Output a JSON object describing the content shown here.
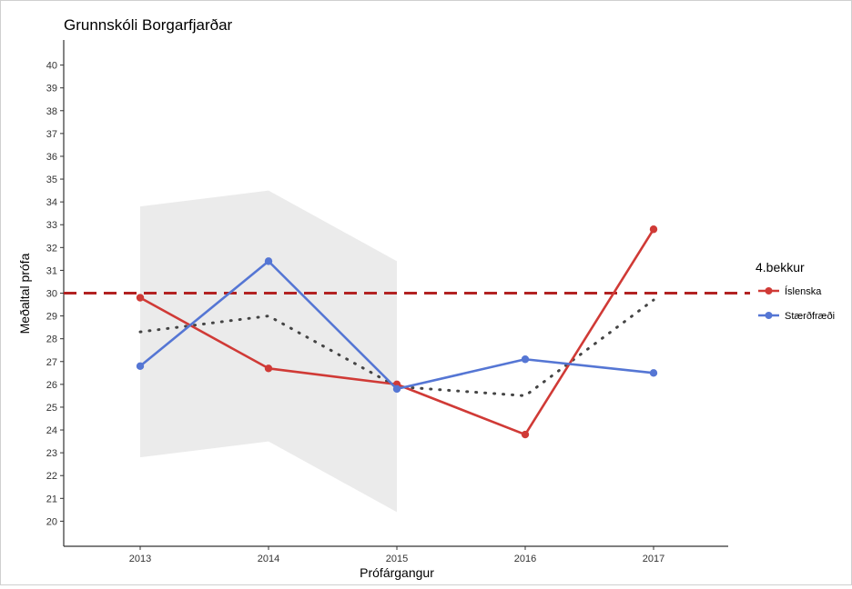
{
  "chart_data": {
    "type": "line",
    "title": "Grunnskóli Borgarfjarðar",
    "xlabel": "Prófárgangur",
    "ylabel": "Meðaltal prófa",
    "categories": [
      "2013",
      "2014",
      "2015",
      "2016",
      "2017"
    ],
    "yticks": [
      20,
      21,
      22,
      23,
      24,
      25,
      26,
      27,
      28,
      29,
      30,
      31,
      32,
      33,
      34,
      35,
      36,
      37,
      38,
      39,
      40
    ],
    "ylim": [
      18.9,
      41.1
    ],
    "reference_line": {
      "value": 30,
      "color": "#b22222",
      "style": "dashed"
    },
    "band": {
      "categories": [
        "2013",
        "2014",
        "2015"
      ],
      "upper": [
        33.8,
        34.5,
        31.4
      ],
      "lower": [
        22.8,
        23.5,
        20.4
      ],
      "color": "#ebebeb"
    },
    "trend": {
      "style": "dotted",
      "color": "#444444",
      "points": [
        {
          "x": "2013",
          "y": 28.3
        },
        {
          "x": "2014",
          "y": 29.0
        },
        {
          "x": "2015",
          "y": 25.9
        },
        {
          "x": "2016",
          "y": 25.5
        },
        {
          "x": "2017",
          "y": 29.7
        }
      ]
    },
    "legend": {
      "title": "4.bekkur",
      "position": "right"
    },
    "series": [
      {
        "name": "Íslenska",
        "color": "#d03a36",
        "values": [
          29.8,
          26.7,
          26.0,
          23.8,
          32.8
        ]
      },
      {
        "name": "Stærðfræði",
        "color": "#5576d4",
        "values": [
          26.8,
          31.4,
          25.8,
          27.1,
          26.5
        ]
      }
    ],
    "grid": false
  }
}
